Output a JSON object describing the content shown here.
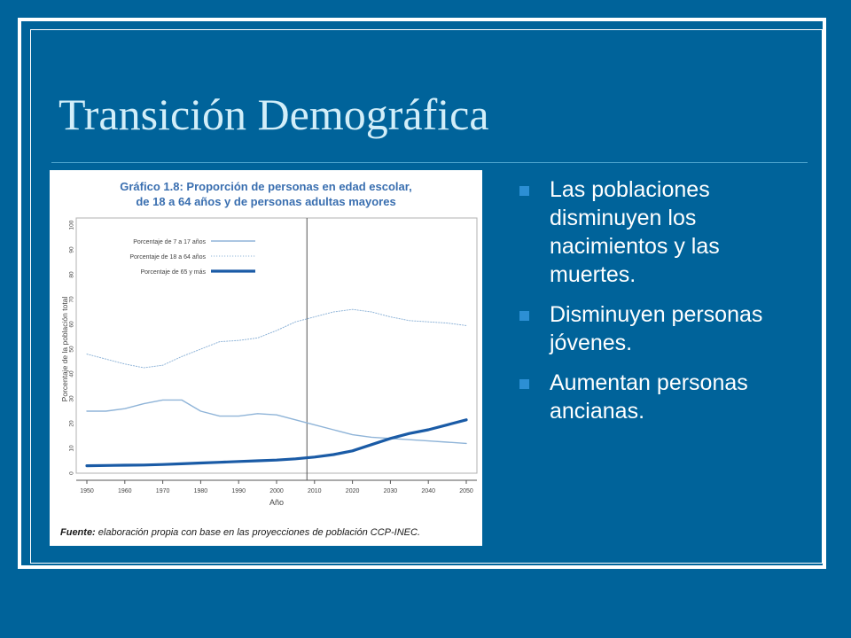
{
  "slide": {
    "title": "Transición Demográfica",
    "bullets": [
      "Las poblaciones disminuyen los nacimientos y las muertes.",
      "Disminuyen personas jóvenes.",
      "Aumentan personas ancianas."
    ]
  },
  "figure": {
    "title_line1": "Gráfico 1.8: Proporción de personas en edad escolar,",
    "title_line2": "de 18 a 64 años y de personas adultas mayores",
    "source_label": "Fuente:",
    "source_text": " elaboración propia con base en las proyecciones de población CCP-INEC."
  },
  "chart_data": {
    "type": "line",
    "xlabel": "Año",
    "ylabel": "Porcentaje de la población total",
    "xlim": [
      1950,
      2050
    ],
    "ylim": [
      0,
      100
    ],
    "xticks": [
      1950,
      1960,
      1970,
      1980,
      1990,
      2000,
      2010,
      2020,
      2030,
      2040,
      2050
    ],
    "yticks": [
      0,
      10,
      20,
      30,
      40,
      50,
      60,
      70,
      80,
      90,
      100
    ],
    "vertical_marker_x": 2008,
    "legend_position": "top-left",
    "grid": false,
    "series": [
      {
        "name": "Porcentaje de 7 a 17 años",
        "style": "thin",
        "color": "#8fb4d8",
        "x": [
          1950,
          1955,
          1960,
          1965,
          1970,
          1975,
          1980,
          1985,
          1990,
          1995,
          2000,
          2005,
          2010,
          2015,
          2020,
          2025,
          2030,
          2035,
          2040,
          2045,
          2050
        ],
        "y": [
          25,
          25,
          26,
          28,
          29.5,
          29.5,
          25,
          23,
          23,
          24,
          23.5,
          21.5,
          19.5,
          17.5,
          15.5,
          14.5,
          14,
          13.5,
          13,
          12.5,
          12
        ]
      },
      {
        "name": "Porcentaje de 18 a 64 años",
        "style": "dotted",
        "color": "#8fb4d8",
        "x": [
          1950,
          1955,
          1960,
          1965,
          1970,
          1975,
          1980,
          1985,
          1990,
          1995,
          2000,
          2005,
          2010,
          2015,
          2020,
          2025,
          2030,
          2035,
          2040,
          2045,
          2050
        ],
        "y": [
          48,
          46,
          44,
          42.5,
          43.5,
          47,
          50,
          53,
          53.5,
          54.5,
          57.5,
          61,
          63,
          65,
          66,
          65,
          63,
          61.5,
          61,
          60.5,
          59.5
        ]
      },
      {
        "name": "Porcentaje de 65 y más",
        "style": "thick",
        "color": "#1a5ba6",
        "x": [
          1950,
          1955,
          1960,
          1965,
          1970,
          1975,
          1980,
          1985,
          1990,
          1995,
          2000,
          2005,
          2010,
          2015,
          2020,
          2025,
          2030,
          2035,
          2040,
          2045,
          2050
        ],
        "y": [
          3,
          3.1,
          3.2,
          3.3,
          3.5,
          3.8,
          4.1,
          4.4,
          4.7,
          5,
          5.3,
          5.8,
          6.5,
          7.5,
          9,
          11.5,
          14,
          16,
          17.5,
          19.5,
          21.5
        ]
      }
    ]
  },
  "colors": {
    "background": "#00639a",
    "title": "#d2eef9",
    "figure_title": "#3a6fb0",
    "bullet_marker": "#2c8fd4"
  }
}
